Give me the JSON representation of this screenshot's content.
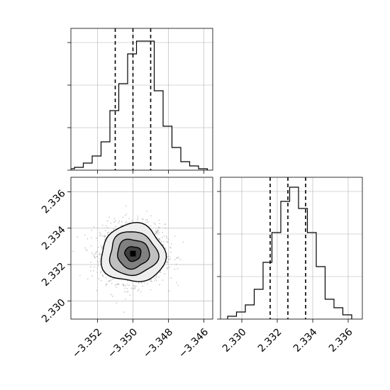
{
  "chart_data": [
    {
      "type": "histogram",
      "panel": "marginal-x",
      "xlim": [
        -3.3535,
        -3.3455
      ],
      "ylim": [
        0,
        1
      ],
      "edges": [
        -3.3538,
        -3.3533,
        -3.3528,
        -3.3523,
        -3.3518,
        -3.3513,
        -3.3508,
        -3.3503,
        -3.3498,
        -3.3493,
        -3.3488,
        -3.3483,
        -3.3478,
        -3.3473,
        -3.3468,
        -3.3463,
        -3.3458
      ],
      "counts": [
        0.01,
        0.02,
        0.05,
        0.1,
        0.2,
        0.42,
        0.61,
        0.82,
        0.91,
        0.91,
        0.56,
        0.31,
        0.16,
        0.06,
        0.03,
        0.01
      ],
      "quantiles": [
        -3.351,
        -3.35,
        -3.349
      ],
      "xticks": [
        -3.352,
        -3.35,
        -3.348,
        -3.346
      ],
      "yticks": [
        0,
        0.3,
        0.6,
        0.9
      ]
    },
    {
      "type": "histogram2d",
      "panel": "joint",
      "xlim": [
        -3.3535,
        -3.3455
      ],
      "ylim": [
        2.329,
        2.3368
      ],
      "xticks": [
        -3.352,
        -3.35,
        -3.348,
        -3.346
      ],
      "yticks": [
        2.33,
        2.332,
        2.334,
        2.336
      ],
      "xtick_labels": [
        "−3.352",
        "−3.350",
        "−3.348",
        "−3.346"
      ],
      "ytick_labels": [
        "2.330",
        "2.332",
        "2.334",
        "2.336"
      ],
      "center": [
        -3.35,
        2.3326
      ],
      "sigma": [
        0.0009,
        0.0008
      ],
      "point_count": 1800,
      "contour_levels": [
        0.118,
        0.393,
        0.675,
        0.865
      ],
      "contour_shades": [
        "#404040",
        "#808080",
        "#c0c0c0",
        "#eeeeee"
      ]
    },
    {
      "type": "histogram",
      "panel": "marginal-y",
      "xlim": [
        2.3288,
        2.3368
      ],
      "ylim": [
        0,
        1
      ],
      "edges": [
        2.3292,
        2.3297,
        2.3302,
        2.3307,
        2.3312,
        2.3317,
        2.3322,
        2.3327,
        2.3332,
        2.3337,
        2.3342,
        2.3347,
        2.3352,
        2.3357,
        2.3362
      ],
      "counts": [
        0.02,
        0.05,
        0.1,
        0.21,
        0.4,
        0.61,
        0.83,
        0.93,
        0.78,
        0.61,
        0.37,
        0.14,
        0.08,
        0.03
      ],
      "quantiles": [
        2.3316,
        2.3326,
        2.3336
      ],
      "xticks": [
        2.33,
        2.332,
        2.334,
        2.336
      ],
      "xtick_labels": [
        "2.330",
        "2.332",
        "2.334",
        "2.336"
      ],
      "yticks": [
        0,
        0.3,
        0.6,
        0.9
      ]
    }
  ]
}
